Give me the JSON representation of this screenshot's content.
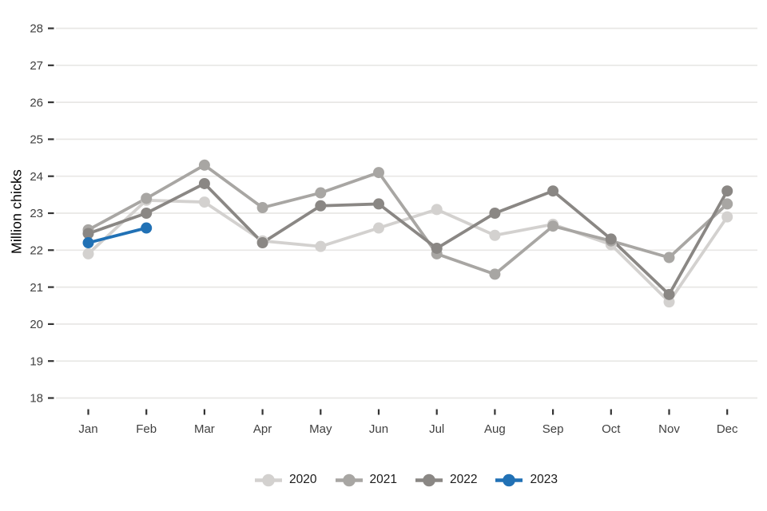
{
  "chart_data": {
    "type": "line",
    "title": "",
    "xlabel": "",
    "ylabel": "Million chicks",
    "categories": [
      "Jan",
      "Feb",
      "Mar",
      "Apr",
      "May",
      "Jun",
      "Jul",
      "Aug",
      "Sep",
      "Oct",
      "Nov",
      "Dec"
    ],
    "series": [
      {
        "name": "2020",
        "color": "#d3d1cf",
        "values": [
          21.9,
          23.35,
          23.3,
          22.25,
          22.1,
          22.6,
          23.1,
          22.4,
          22.7,
          22.15,
          20.6,
          22.9
        ]
      },
      {
        "name": "2021",
        "color": "#a8a6a3",
        "values": [
          22.55,
          23.4,
          24.3,
          23.15,
          23.55,
          24.1,
          21.9,
          21.35,
          22.65,
          22.25,
          21.8,
          23.25
        ]
      },
      {
        "name": "2022",
        "color": "#8a8784",
        "values": [
          22.45,
          23.0,
          23.8,
          22.2,
          23.2,
          23.25,
          22.05,
          23.0,
          23.6,
          22.3,
          20.8,
          23.6
        ]
      },
      {
        "name": "2023",
        "color": "#2171b5",
        "values": [
          22.2,
          22.6,
          null,
          null,
          null,
          null,
          null,
          null,
          null,
          null,
          null,
          null
        ]
      }
    ],
    "ylim": [
      18,
      28
    ],
    "yticks": [
      18,
      19,
      20,
      21,
      22,
      23,
      24,
      25,
      26,
      27,
      28
    ],
    "grid": true,
    "legend_position": "bottom"
  },
  "style": {
    "background": "#ffffff",
    "grid_color": "#e8e7e5",
    "tick_mark_color": "#333333",
    "tick_label_color": "#404040",
    "axis_title_color": "#000000",
    "legend_text_color": "#1a1a1a"
  }
}
